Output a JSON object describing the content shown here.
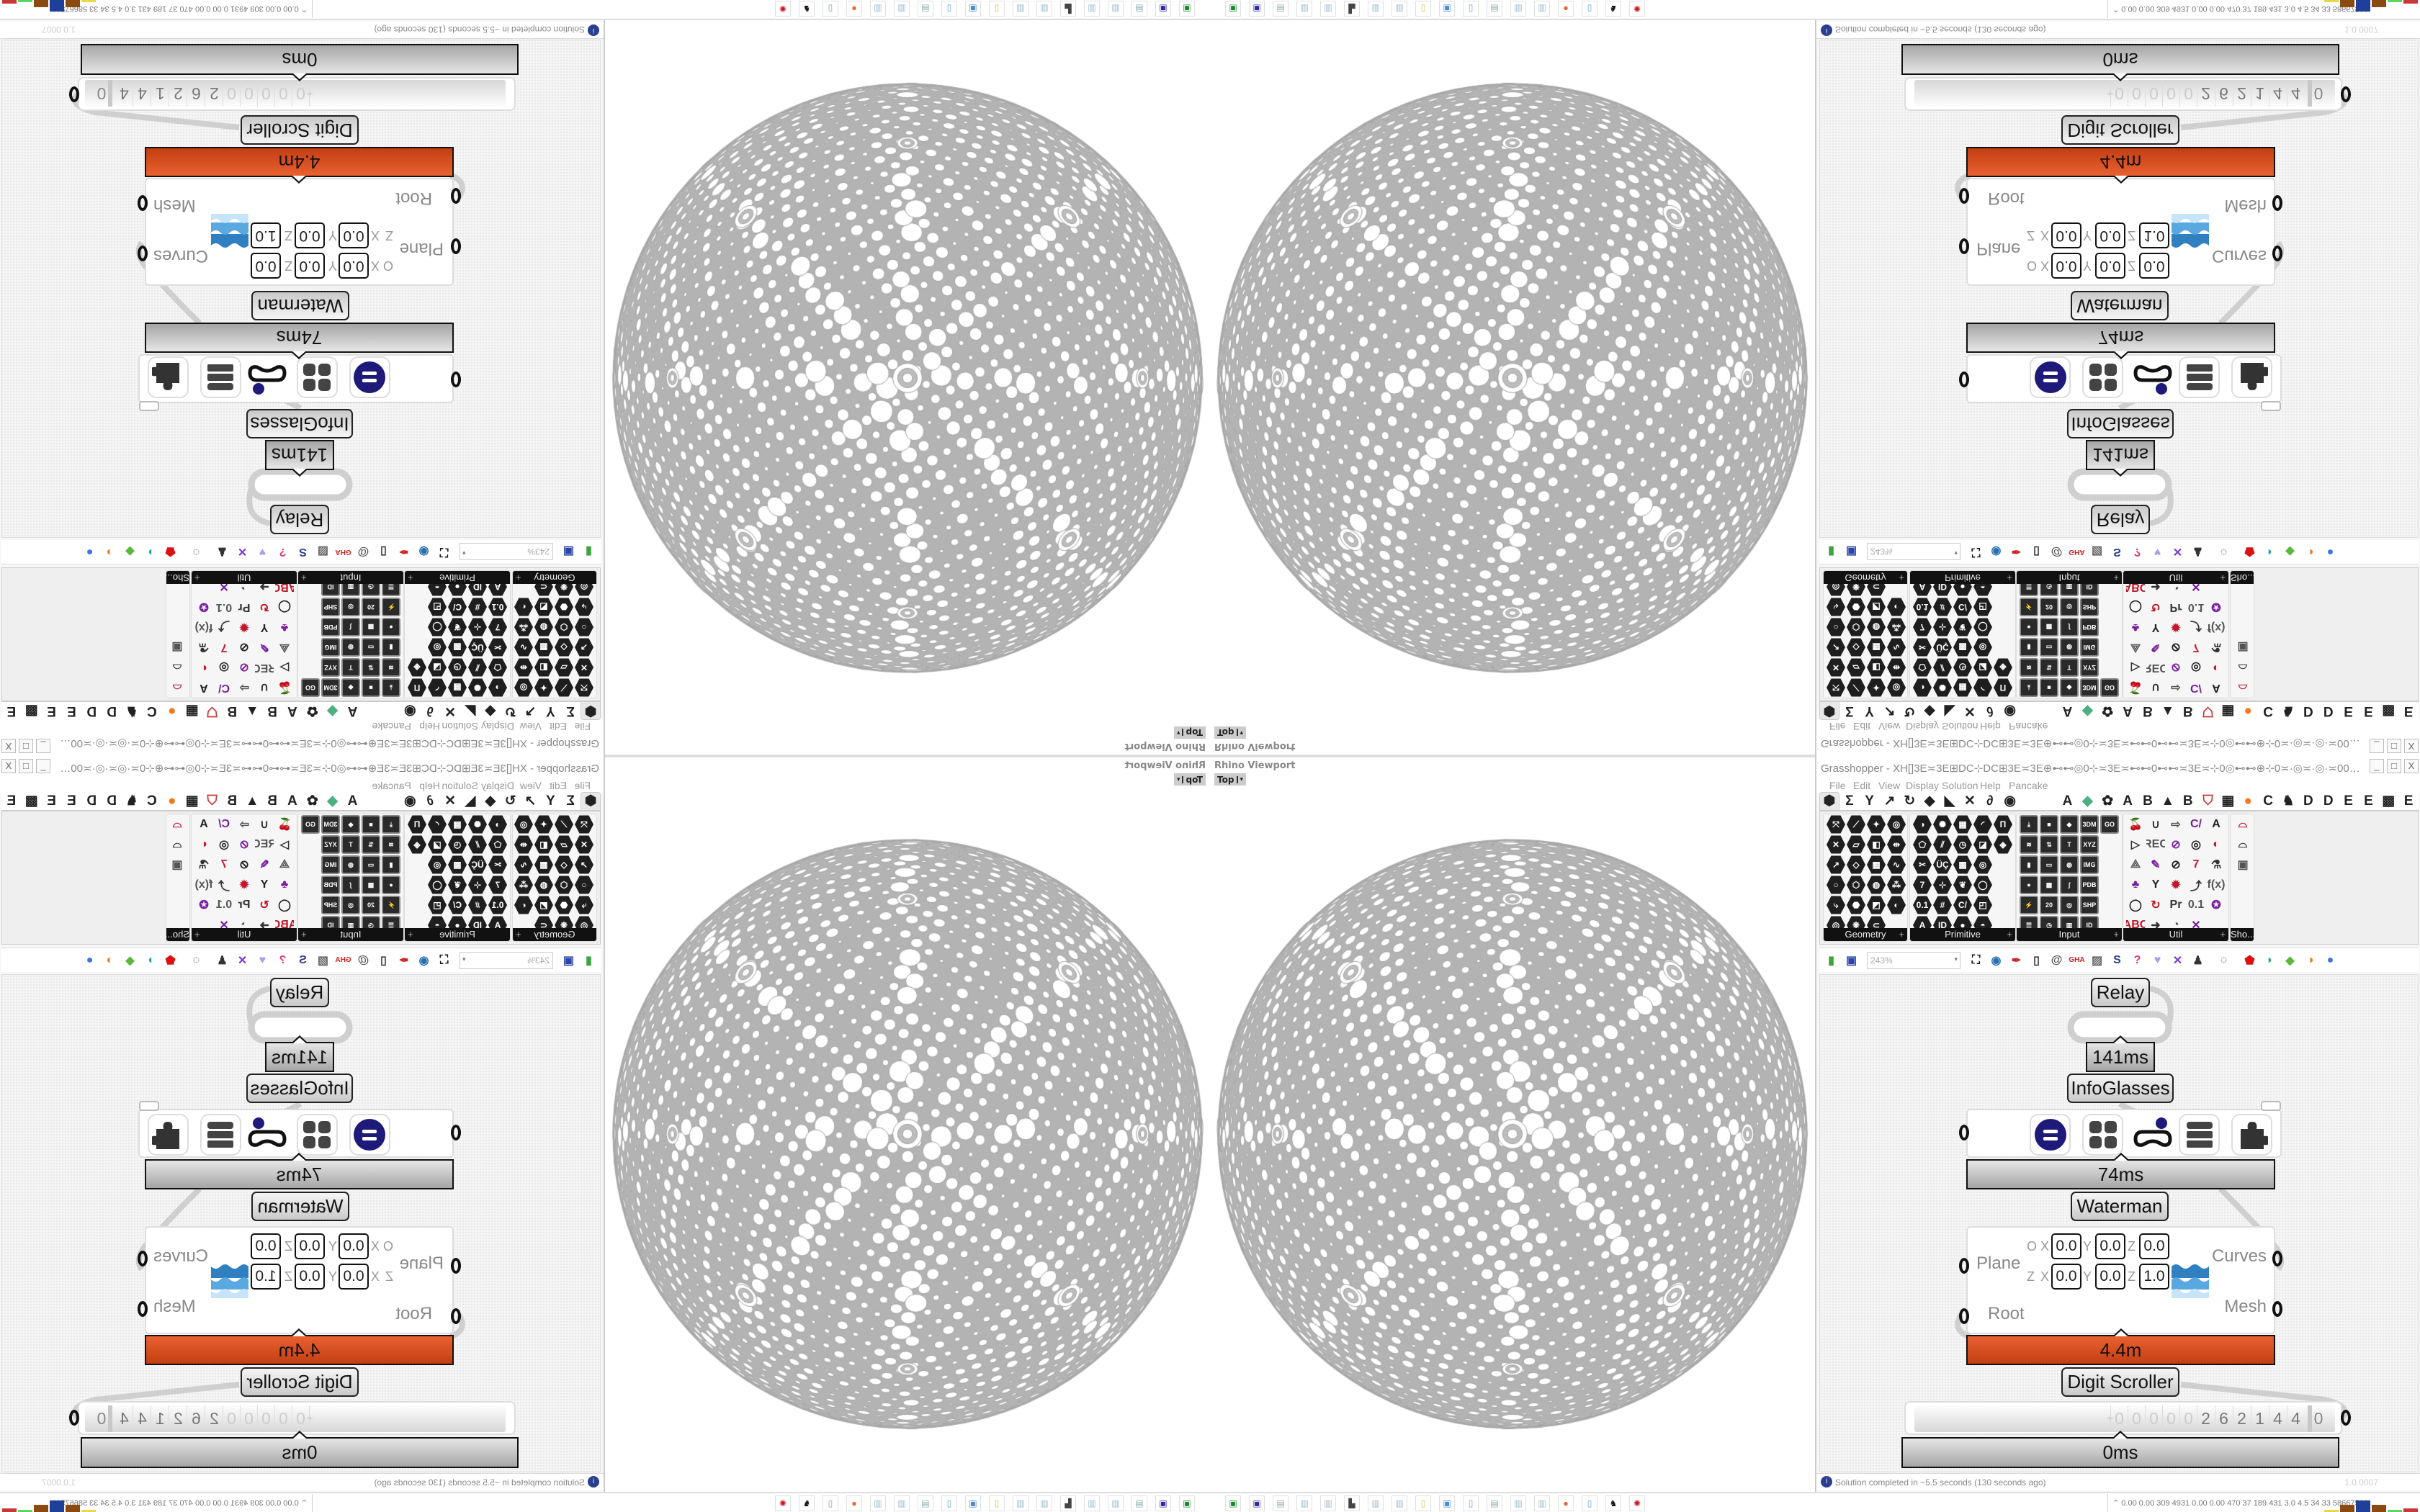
{
  "rhino": {
    "viewport_label": "Rhino Viewport",
    "view_name": "Top",
    "view_dropdown": "▾",
    "sphere_color": "#b3b3b3"
  },
  "grasshopper": {
    "title": "Grasshopper - XH[]3E≍3E⊞DC⊹DC⊞3E≍3E⊕⊷⊷◎0⊹≍3E≍⊷⊷0⊷⊷≍3E≍⊹0◎⊷⊷⊕⊹0≍·◎≍·◎·≍00⊹⊕⊷⊷◎⊹0⊷⊷3E]3E⊷⊷0⊹0⊷⊷⊕⊹0≍·◎≍·◎·≍00⊹⊕⊷⊷◎0⊹≍3E≍⊷⊷0...",
    "window_controls": [
      "_",
      "□",
      "X"
    ],
    "menu": [
      "File",
      "Edit",
      "View",
      "Display",
      "Solution",
      "Help",
      "Pancake"
    ],
    "tabs": [
      {
        "glyph": "⬢",
        "name": "params-tab"
      },
      {
        "glyph": "Σ",
        "name": "maths-tab"
      },
      {
        "glyph": "Y",
        "name": "sets-tab"
      },
      {
        "glyph": "↗",
        "name": "vector-tab"
      },
      {
        "glyph": "↻",
        "name": "curve-tab"
      },
      {
        "glyph": "◆",
        "name": "surface-tab"
      },
      {
        "glyph": "◣",
        "name": "mesh-tab"
      },
      {
        "glyph": "✕",
        "name": "intersect-tab"
      },
      {
        "glyph": "∂",
        "name": "transform-tab"
      },
      {
        "glyph": "◉",
        "name": "display-tab"
      },
      {
        "glyph": "A"
      },
      {
        "glyph": "◆",
        "color": "#4caf7d"
      },
      {
        "glyph": "✿"
      },
      {
        "glyph": "A"
      },
      {
        "glyph": "B"
      },
      {
        "glyph": "▲"
      },
      {
        "glyph": "B"
      },
      {
        "glyph": "⛉",
        "color": "#c33"
      },
      {
        "glyph": "▦"
      },
      {
        "glyph": "●",
        "color": "#f07a20"
      },
      {
        "glyph": "C"
      },
      {
        "glyph": "♞"
      },
      {
        "glyph": "D"
      },
      {
        "glyph": "D"
      },
      {
        "glyph": "E"
      },
      {
        "glyph": "E"
      },
      {
        "glyph": "▩"
      },
      {
        "glyph": "E"
      }
    ],
    "panels": [
      {
        "label": "Geometry",
        "style": "hex",
        "rows": [
          [
            "⤧",
            "⟋",
            "✦",
            "◎"
          ],
          [
            "✕",
            "▱",
            "◧",
            "⇹"
          ],
          [
            "↗",
            "◇",
            "▦",
            "∿"
          ],
          [
            "○",
            "⬡",
            "◍",
            "⁂"
          ],
          [
            "⤷",
            "⬣",
            "◩",
            "◐"
          ],
          [
            "◎",
            "❋",
            "⊂"
          ]
        ]
      },
      {
        "label": "Primitive",
        "style": "hex",
        "rows": [
          [
            "◑",
            "✺",
            "▦",
            "◜",
            "Π"
          ],
          [
            "⬠",
            "⫽",
            "◷",
            "◪",
            "◈"
          ],
          [
            "✂",
            "ÜÇ",
            "▩",
            "◎"
          ],
          [
            "7",
            "⊹",
            "❦",
            "◯"
          ],
          [
            "0.1",
            "#",
            "C/",
            "◰"
          ],
          [
            "A",
            "ID",
            "●",
            "◓"
          ]
        ]
      },
      {
        "label": "Input",
        "style": "tile",
        "rows": [
          [
            "⤓",
            "■",
            "◆",
            "3DM",
            "GO"
          ],
          [
            "≋",
            "⇅",
            "T",
            "XYZ"
          ],
          [
            "▮",
            "▭",
            "◍",
            "IMG"
          ],
          [
            "●",
            "▩",
            "∫",
            "PDB"
          ],
          [
            "⚡",
            "20",
            "◎",
            "SHP"
          ],
          [
            "☰",
            "◷",
            "▥",
            "ID"
          ]
        ]
      },
      {
        "label": "Util",
        "style": "util",
        "rows": [
          [
            "🍒",
            "∪",
            "⇨",
            "C/",
            "A"
          ],
          [
            "▷",
            "REC",
            "⊘",
            "◎",
            "◐"
          ],
          [
            "⟁",
            "✎",
            "⊘",
            "7",
            "⚗"
          ],
          [
            "♣",
            "Y",
            "✹",
            "⤴",
            "f(x)"
          ],
          [
            "◯",
            "↻",
            "Pr",
            "0.1",
            "✪"
          ],
          [
            "ABC",
            "➜",
            "◔",
            "✕"
          ]
        ]
      },
      {
        "label": "Sho...",
        "style": "util",
        "rows": [
          [
            "⌓"
          ],
          [
            "⌓"
          ],
          [
            "▣"
          ]
        ]
      }
    ],
    "toolbar": {
      "zoom_value": "243%",
      "icons_left": [
        {
          "name": "new-document-icon",
          "glyph": "▮",
          "color": "#3fa33f"
        },
        {
          "name": "save-icon",
          "glyph": "▣",
          "color": "#2b45a8"
        }
      ],
      "icons_right": [
        {
          "name": "zoom-extents-icon",
          "glyph": "⛶",
          "color": "#111"
        },
        {
          "name": "preview-eye-icon",
          "glyph": "◉",
          "color": "#2a6fb0"
        },
        {
          "name": "sketch-pen-icon",
          "glyph": "✒",
          "color": "#c22"
        },
        {
          "name": "bake-icon",
          "glyph": "▯",
          "color": "#333"
        },
        {
          "name": "email-icon",
          "glyph": "@",
          "color": "#555"
        },
        {
          "name": "gha-icon",
          "glyph": "GHA",
          "color": "#c22"
        },
        {
          "name": "image-icon",
          "glyph": "▨",
          "color": "#666"
        },
        {
          "name": "search-icon",
          "glyph": "S",
          "color": "#2b3f8f"
        },
        {
          "name": "package-icon",
          "glyph": "?",
          "color": "#e0357a"
        },
        {
          "name": "balloon-icon",
          "glyph": "♥",
          "color": "#a7a0e8"
        },
        {
          "name": "wires-icon",
          "glyph": "✕",
          "color": "#7a3bd0"
        },
        {
          "name": "robot-icon",
          "glyph": "♟",
          "color": "#333"
        },
        {
          "name": "chain-icon",
          "glyph": "◌",
          "color": "#333"
        },
        {
          "name": "red-gem-icon",
          "glyph": "⬟",
          "color": "#d11"
        },
        {
          "name": "teal-shape-icon",
          "glyph": "◗",
          "color": "#1aa3a3"
        },
        {
          "name": "green-shape-icon",
          "glyph": "◆",
          "color": "#5cb83c"
        },
        {
          "name": "sphere-icon",
          "glyph": "◑",
          "color": "#e07b20"
        },
        {
          "name": "blue-sphere-icon",
          "glyph": "●",
          "color": "#3a78d8"
        }
      ]
    },
    "canvas": {
      "relay": "Relay",
      "relay_time": "141ms",
      "infoglasses": "InfoGlasses",
      "widget_time": "74ms",
      "waterman": "Waterman",
      "waterman_time": "4.4m",
      "waterman_inputs": [
        "Plane",
        "Root"
      ],
      "waterman_outputs": [
        "Curves",
        "Mesh"
      ],
      "plane": {
        "origin_label": "O",
        "zaxis_label": "Z",
        "axis_labels": [
          "X",
          "Y",
          "Z"
        ],
        "origin": [
          "0.0",
          "0.0",
          "0.0"
        ],
        "zaxis": [
          "0.0",
          "0.0",
          "1.0"
        ]
      },
      "digit_scroller": "Digit Scroller",
      "scroller_sign": "+",
      "scroller_leading": [
        "0",
        "0",
        "0",
        "0",
        "0"
      ],
      "scroller_digits": [
        "2",
        "6",
        "2",
        "1",
        "4",
        "4"
      ],
      "scroller_decimal": "0",
      "scroller_time": "0ms",
      "widget_colors": {
        "equals": "#1e1a7a",
        "grid": "#444",
        "goggles": "#111",
        "badge": "#1e1a7a"
      }
    },
    "status": {
      "message": "Solution completed in ~5.5 seconds (130 seconds ago)",
      "version": "1.0.0007"
    }
  },
  "taskbar": {
    "icons": [
      {
        "name": "terminal-icon",
        "glyph": "▣",
        "color": "#1c8a2c"
      },
      {
        "name": "floppy-icon",
        "glyph": "▣",
        "color": "#2b2ba8"
      },
      {
        "name": "file-icon",
        "glyph": "▤",
        "color": "#8aa"
      },
      {
        "name": "notepad-icon",
        "glyph": "▥",
        "color": "#9bc"
      },
      {
        "name": "notepad-icon",
        "glyph": "▥",
        "color": "#9bc"
      },
      {
        "name": "monitor-icon",
        "glyph": "▙",
        "color": "#444"
      },
      {
        "name": "notepad-icon",
        "glyph": "▥",
        "color": "#9bc"
      },
      {
        "name": "notepad-icon",
        "glyph": "▥",
        "color": "#9bc"
      },
      {
        "name": "folder-icon",
        "glyph": "▯",
        "color": "#d8c04a"
      },
      {
        "name": "app-icon",
        "glyph": "▣",
        "color": "#4a8ad8"
      },
      {
        "name": "phone-icon",
        "glyph": "▯",
        "color": "#6aa0d0"
      },
      {
        "name": "file-icon",
        "glyph": "▤",
        "color": "#8aa"
      },
      {
        "name": "notepad-icon",
        "glyph": "▥",
        "color": "#9bc"
      },
      {
        "name": "notepad-icon",
        "glyph": "▥",
        "color": "#9bc"
      },
      {
        "name": "firefox-icon",
        "glyph": "●",
        "color": "#e8612c"
      },
      {
        "name": "phone-icon",
        "glyph": "▯",
        "color": "#6aa0d0"
      },
      {
        "name": "wolf-icon",
        "glyph": "♞",
        "color": "#111"
      },
      {
        "name": "red-app-icon",
        "glyph": "✺",
        "color": "#c8141e"
      }
    ],
    "perf_text": "0.00 0.00 309 4931 0.00 0.00 470  37  189  431  3.0  4.5  34  33  58667592",
    "perf_bars": [
      {
        "color": "#e6d84a",
        "value": 0.1
      },
      {
        "color": "#8a4a10",
        "value": 0.6
      },
      {
        "color": "#1e3f9a",
        "value": 1.0
      },
      {
        "color": "#8a4a10",
        "value": 0.6
      },
      {
        "color": "#5cd65c",
        "value": 0.1
      },
      {
        "color": "#c83838",
        "value": 0.2
      }
    ]
  }
}
